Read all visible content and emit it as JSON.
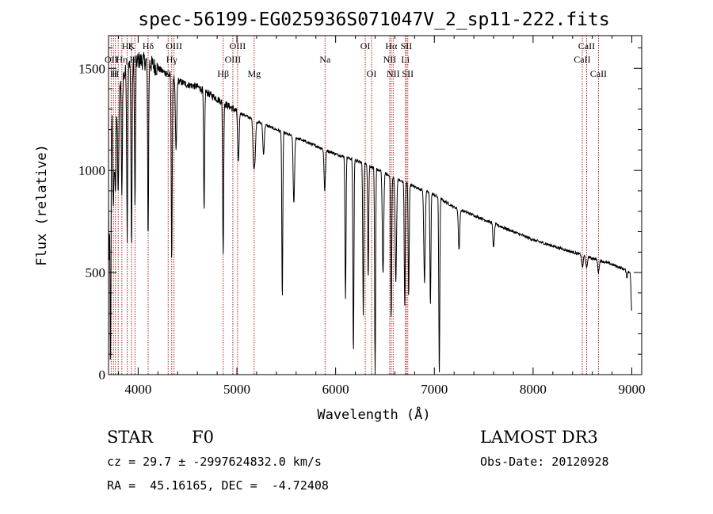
{
  "chart_data": {
    "type": "line",
    "title": "spec-56199-EG025936S071047V_2_sp11-222.fits",
    "xlabel": "Wavelength (Å)",
    "ylabel": "Flux (relative)",
    "xlim": [
      3700,
      9100
    ],
    "ylim": [
      0,
      1660
    ],
    "xticks": [
      4000,
      5000,
      6000,
      7000,
      8000,
      9000
    ],
    "yticks": [
      0,
      500,
      1000,
      1500
    ],
    "grid": false,
    "line_color": "#000000",
    "marker_color": "#b22222",
    "continuum": {
      "x": [
        3700,
        3800,
        3900,
        4000,
        4100,
        4200,
        4300,
        4400,
        4500,
        4600,
        4800,
        5000,
        5200,
        5400,
        5600,
        5800,
        6000,
        6200,
        6400,
        6600,
        6800,
        7000,
        7200,
        7400,
        7600,
        7800,
        8000,
        8200,
        8400,
        8600,
        8800,
        9000
      ],
      "y": [
        1250,
        1420,
        1500,
        1540,
        1530,
        1500,
        1470,
        1440,
        1420,
        1410,
        1350,
        1290,
        1240,
        1200,
        1160,
        1120,
        1080,
        1050,
        1010,
        960,
        920,
        880,
        820,
        780,
        740,
        700,
        660,
        630,
        600,
        570,
        540,
        500
      ]
    },
    "absorption": [
      {
        "x": 3705,
        "depth": 700
      },
      {
        "x": 3720,
        "depth": 1250
      },
      {
        "x": 3750,
        "depth": 500
      },
      {
        "x": 3770,
        "depth": 450
      },
      {
        "x": 3798,
        "depth": 500
      },
      {
        "x": 3835,
        "depth": 600
      },
      {
        "x": 3889,
        "depth": 800
      },
      {
        "x": 3933,
        "depth": 900
      },
      {
        "x": 3968,
        "depth": 700
      },
      {
        "x": 4101,
        "depth": 850
      },
      {
        "x": 4340,
        "depth": 900
      },
      {
        "x": 4384,
        "depth": 350
      },
      {
        "x": 4668,
        "depth": 600
      },
      {
        "x": 4861,
        "depth": 750
      },
      {
        "x": 5015,
        "depth": 250
      },
      {
        "x": 5169,
        "depth": 200
      },
      {
        "x": 5183,
        "depth": 180
      },
      {
        "x": 5270,
        "depth": 150
      },
      {
        "x": 5460,
        "depth": 820
      },
      {
        "x": 5577,
        "depth": 330
      },
      {
        "x": 5890,
        "depth": 200
      },
      {
        "x": 6100,
        "depth": 700
      },
      {
        "x": 6180,
        "depth": 950
      },
      {
        "x": 6280,
        "depth": 750
      },
      {
        "x": 6330,
        "depth": 550
      },
      {
        "x": 6400,
        "depth": 1000
      },
      {
        "x": 6480,
        "depth": 500
      },
      {
        "x": 6563,
        "depth": 700
      },
      {
        "x": 6610,
        "depth": 500
      },
      {
        "x": 6700,
        "depth": 600
      },
      {
        "x": 6740,
        "depth": 550
      },
      {
        "x": 6900,
        "depth": 450
      },
      {
        "x": 6960,
        "depth": 550
      },
      {
        "x": 7050,
        "depth": 870
      },
      {
        "x": 7250,
        "depth": 200
      },
      {
        "x": 7600,
        "depth": 120
      },
      {
        "x": 8500,
        "depth": 60
      },
      {
        "x": 8542,
        "depth": 60
      },
      {
        "x": 8662,
        "depth": 60
      },
      {
        "x": 8950,
        "depth": 30
      },
      {
        "x": 9000,
        "depth": 200
      }
    ],
    "line_markers": [
      {
        "x": 3727,
        "label": "OII",
        "row": 2
      },
      {
        "x": 3750,
        "label": "H",
        "row": 3
      },
      {
        "x": 3770,
        "label": "H",
        "row": 3
      },
      {
        "x": 3798,
        "label": "",
        "row": 3
      },
      {
        "x": 3835,
        "label": "Hη",
        "row": 2
      },
      {
        "x": 3889,
        "label": "Hζ",
        "row": 1
      },
      {
        "x": 3933,
        "label": "K",
        "row": 1
      },
      {
        "x": 3968,
        "label": "Hε",
        "row": 2
      },
      {
        "x": 4101,
        "label": "Hδ",
        "row": 1
      },
      {
        "x": 4304,
        "label": "G",
        "row": 3
      },
      {
        "x": 4340,
        "label": "Hγ",
        "row": 2
      },
      {
        "x": 4363,
        "label": "OIII",
        "row": 1
      },
      {
        "x": 4861,
        "label": "Hβ",
        "row": 3
      },
      {
        "x": 4959,
        "label": "OIII",
        "row": 2
      },
      {
        "x": 5007,
        "label": "OIII",
        "row": 1
      },
      {
        "x": 5175,
        "label": "Mg",
        "row": 3
      },
      {
        "x": 5893,
        "label": "Na",
        "row": 2
      },
      {
        "x": 6300,
        "label": "OI",
        "row": 1
      },
      {
        "x": 6364,
        "label": "OI",
        "row": 3
      },
      {
        "x": 6548,
        "label": "NII",
        "row": 2
      },
      {
        "x": 6563,
        "label": "Hα",
        "row": 1
      },
      {
        "x": 6583,
        "label": "NII",
        "row": 3
      },
      {
        "x": 6707,
        "label": "Li",
        "row": 2
      },
      {
        "x": 6716,
        "label": "SII",
        "row": 1
      },
      {
        "x": 6731,
        "label": "SII",
        "row": 3
      },
      {
        "x": 8498,
        "label": "CaII",
        "row": 2
      },
      {
        "x": 8542,
        "label": "CaII",
        "row": 1
      },
      {
        "x": 8662,
        "label": "CaII",
        "row": 3
      }
    ]
  },
  "info": {
    "object_class": "STAR",
    "subclass": "F0",
    "survey": "LAMOST DR3",
    "cz_line": "cz = 29.7 ± -2997624832.0 km/s",
    "obs_date_line": "Obs-Date: 20120928",
    "radec_line": "RA =  45.16165, DEC =  -4.72408"
  }
}
